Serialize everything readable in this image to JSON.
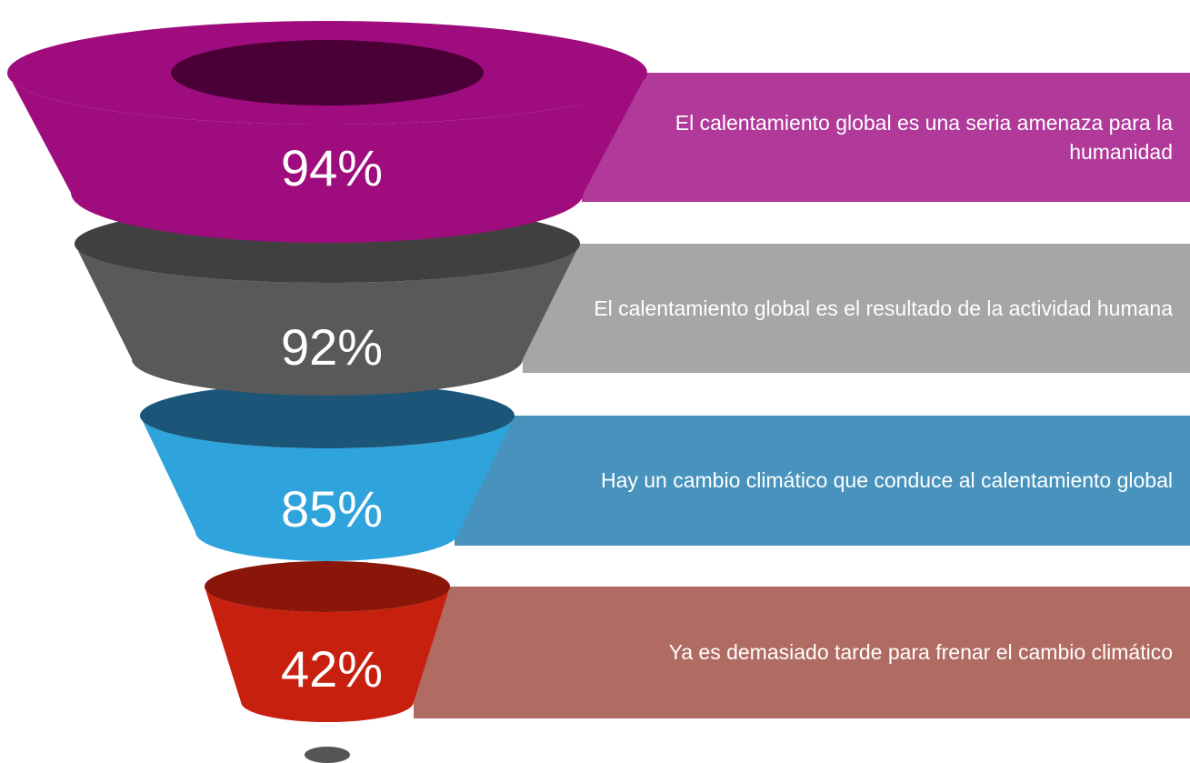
{
  "chart_data": {
    "type": "funnel",
    "categories": [
      "El calentamiento global es una seria amenaza para la humanidad",
      "El calentamiento global es el resultado de la actividad humana",
      "Hay un cambio climático que conduce al calentamiento global",
      "Ya es demasiado tarde para frenar el cambio climático"
    ],
    "values": [
      94,
      92,
      85,
      42
    ],
    "value_labels": [
      "94%",
      "92%",
      "85%",
      "42%"
    ],
    "colors": [
      "#9e0c7e",
      "#595959",
      "#2ea3dc",
      "#c8200f"
    ],
    "top_colors": [
      "#4a0036",
      "#404040",
      "#1b5678",
      "#8a1609"
    ],
    "band_colors": [
      "#b0399a",
      "#a6a6a6",
      "#4893bd",
      "#b06b62"
    ]
  }
}
